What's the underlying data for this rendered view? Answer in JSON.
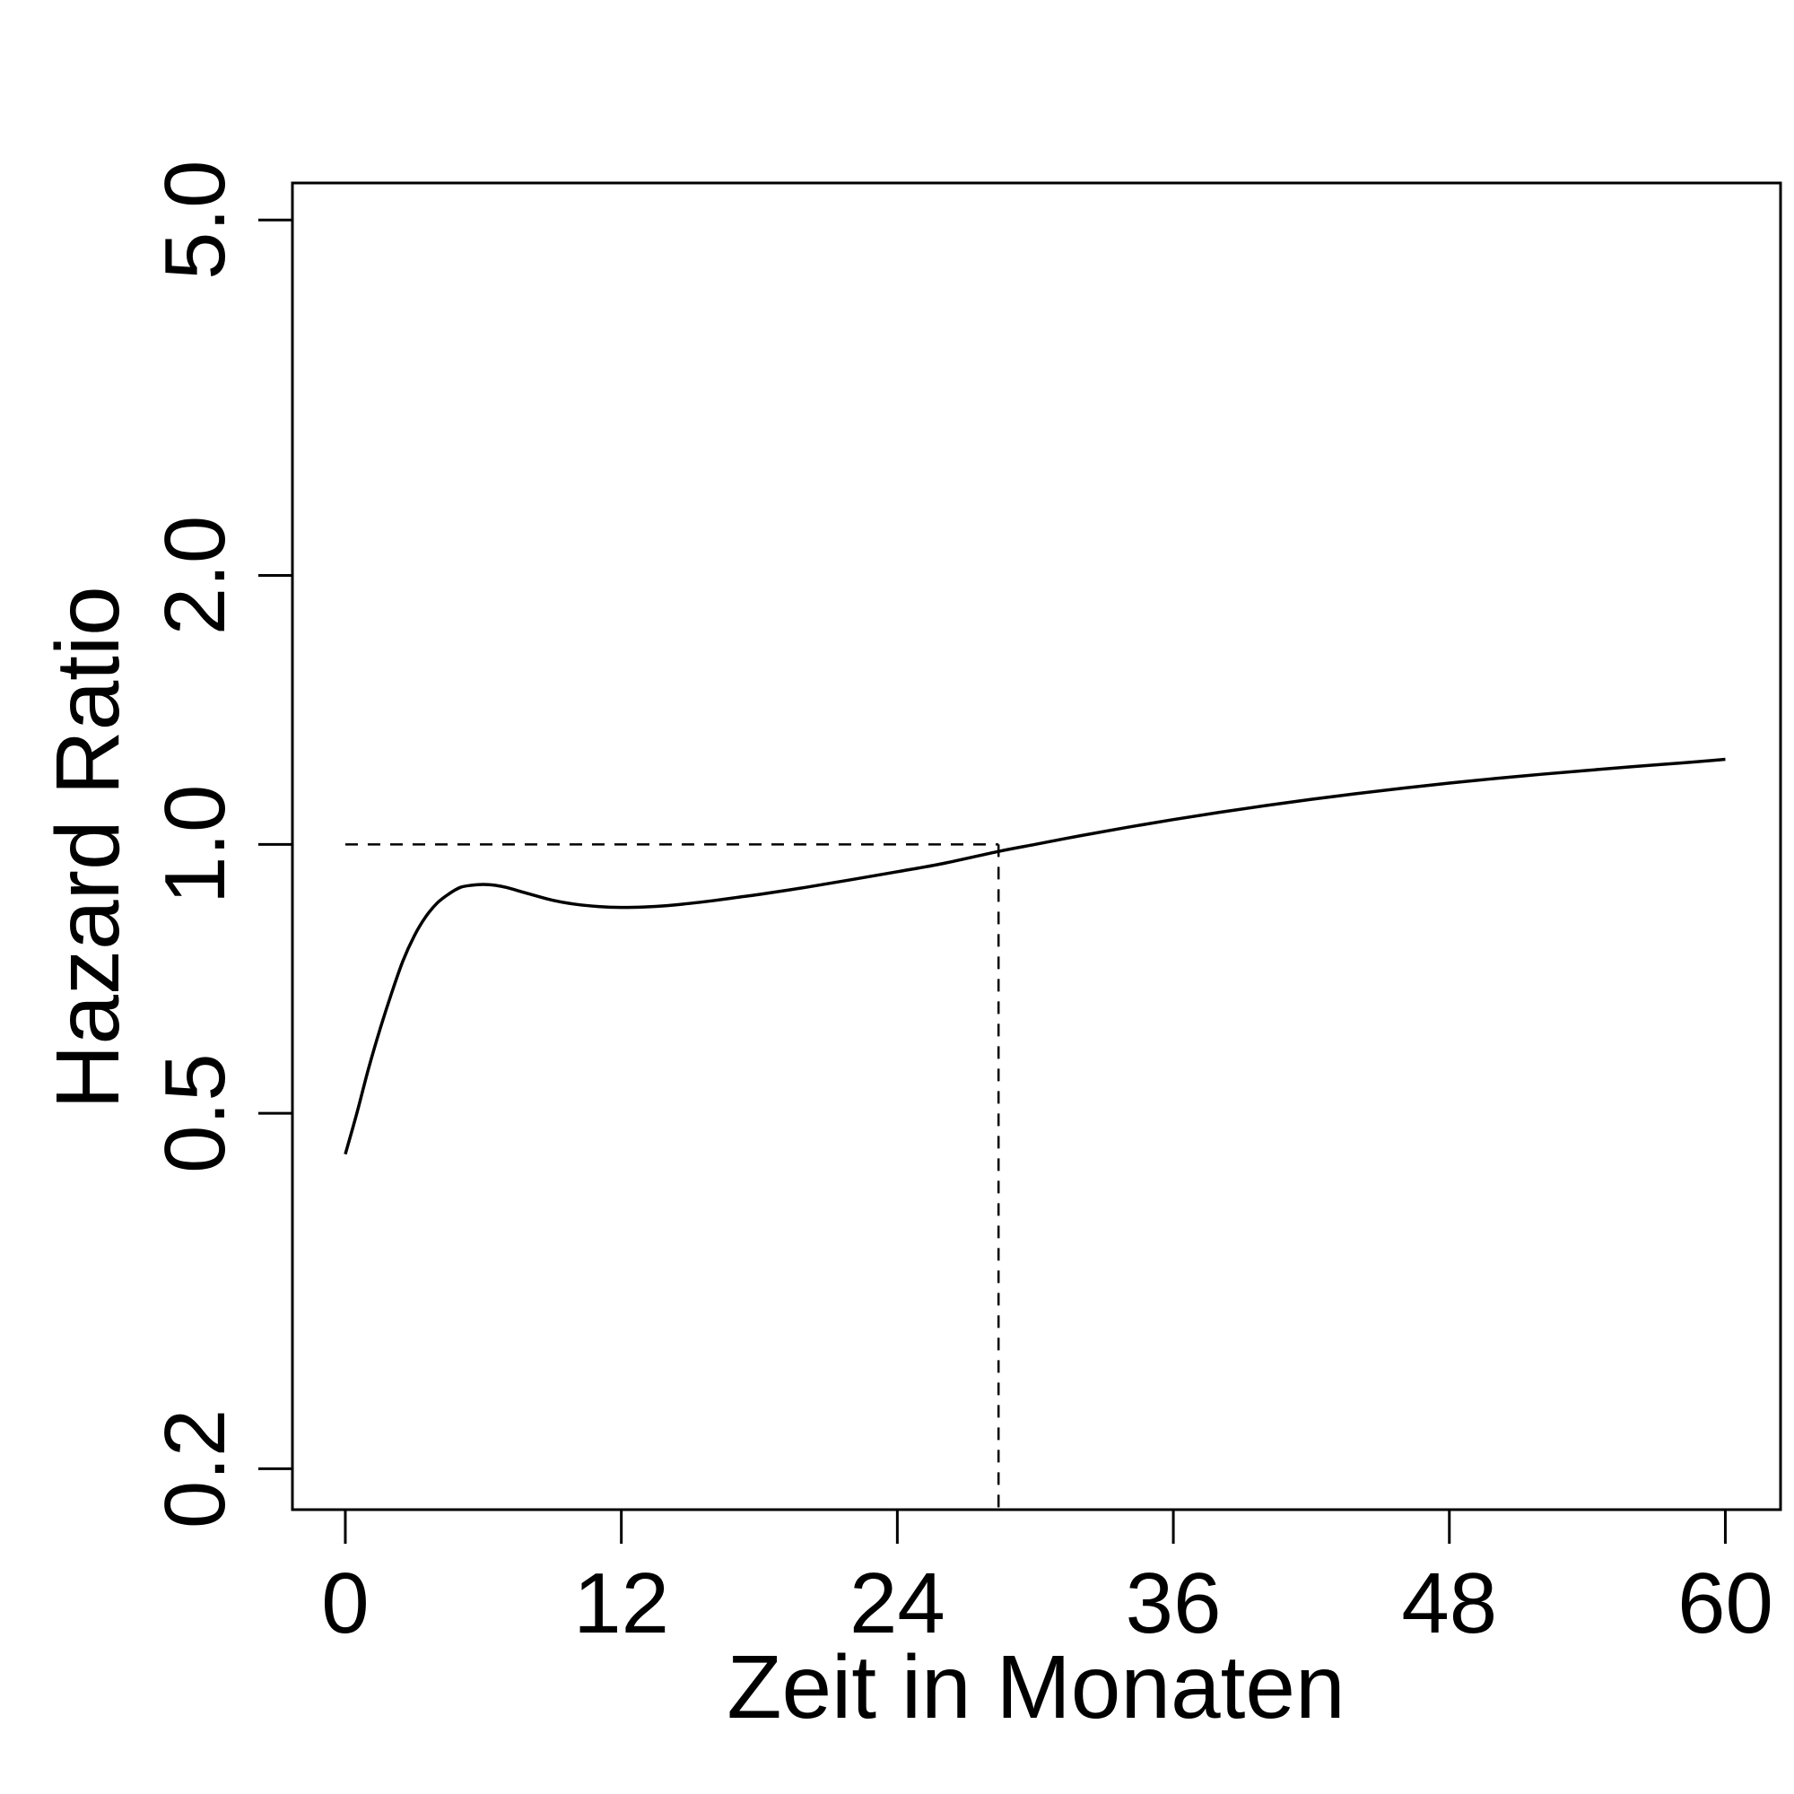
{
  "chart_data": {
    "type": "line",
    "title": "",
    "xlabel": "Zeit in Monaten",
    "ylabel": "Hazard Ratio",
    "x_ticks": [
      0,
      12,
      24,
      36,
      48,
      60
    ],
    "y_ticks": [
      0.2,
      0.5,
      1.0,
      2.0,
      5.0
    ],
    "y_tick_labels": [
      "0.2",
      "0.5",
      "1.0",
      "2.0",
      "5.0"
    ],
    "y_scale": "log",
    "xlim": [
      -2.3,
      62.4
    ],
    "ylim": [
      0.18,
      5.5
    ],
    "grid": false,
    "series": [
      {
        "x": [
          0,
          0.5,
          1,
          1.5,
          2,
          2.5,
          3,
          3.5,
          4,
          4.5,
          5,
          5.5,
          6,
          6.5,
          7,
          8,
          9,
          10,
          11,
          12,
          13,
          14,
          15,
          16,
          17,
          18,
          20,
          22,
          24,
          26,
          28.4,
          30,
          32,
          34,
          36,
          38,
          40,
          42,
          44,
          46,
          48,
          50,
          52,
          54,
          56,
          58,
          60
        ],
        "y": [
          0.45,
          0.5,
          0.56,
          0.62,
          0.68,
          0.74,
          0.79,
          0.83,
          0.86,
          0.88,
          0.895,
          0.9,
          0.902,
          0.9,
          0.895,
          0.88,
          0.866,
          0.857,
          0.852,
          0.85,
          0.851,
          0.854,
          0.859,
          0.865,
          0.872,
          0.879,
          0.895,
          0.913,
          0.932,
          0.952,
          0.982,
          1.0,
          1.023,
          1.045,
          1.066,
          1.086,
          1.105,
          1.123,
          1.14,
          1.156,
          1.171,
          1.185,
          1.198,
          1.21,
          1.222,
          1.233,
          1.245
        ]
      }
    ],
    "reference_lines": [
      {
        "type": "horizontal",
        "y": 1.0,
        "x_from": 0,
        "x_to": 28.4,
        "style": "dashed"
      },
      {
        "type": "vertical",
        "x": 28.4,
        "y_from": 1.0,
        "y_to": 0.18,
        "style": "dashed"
      }
    ]
  }
}
